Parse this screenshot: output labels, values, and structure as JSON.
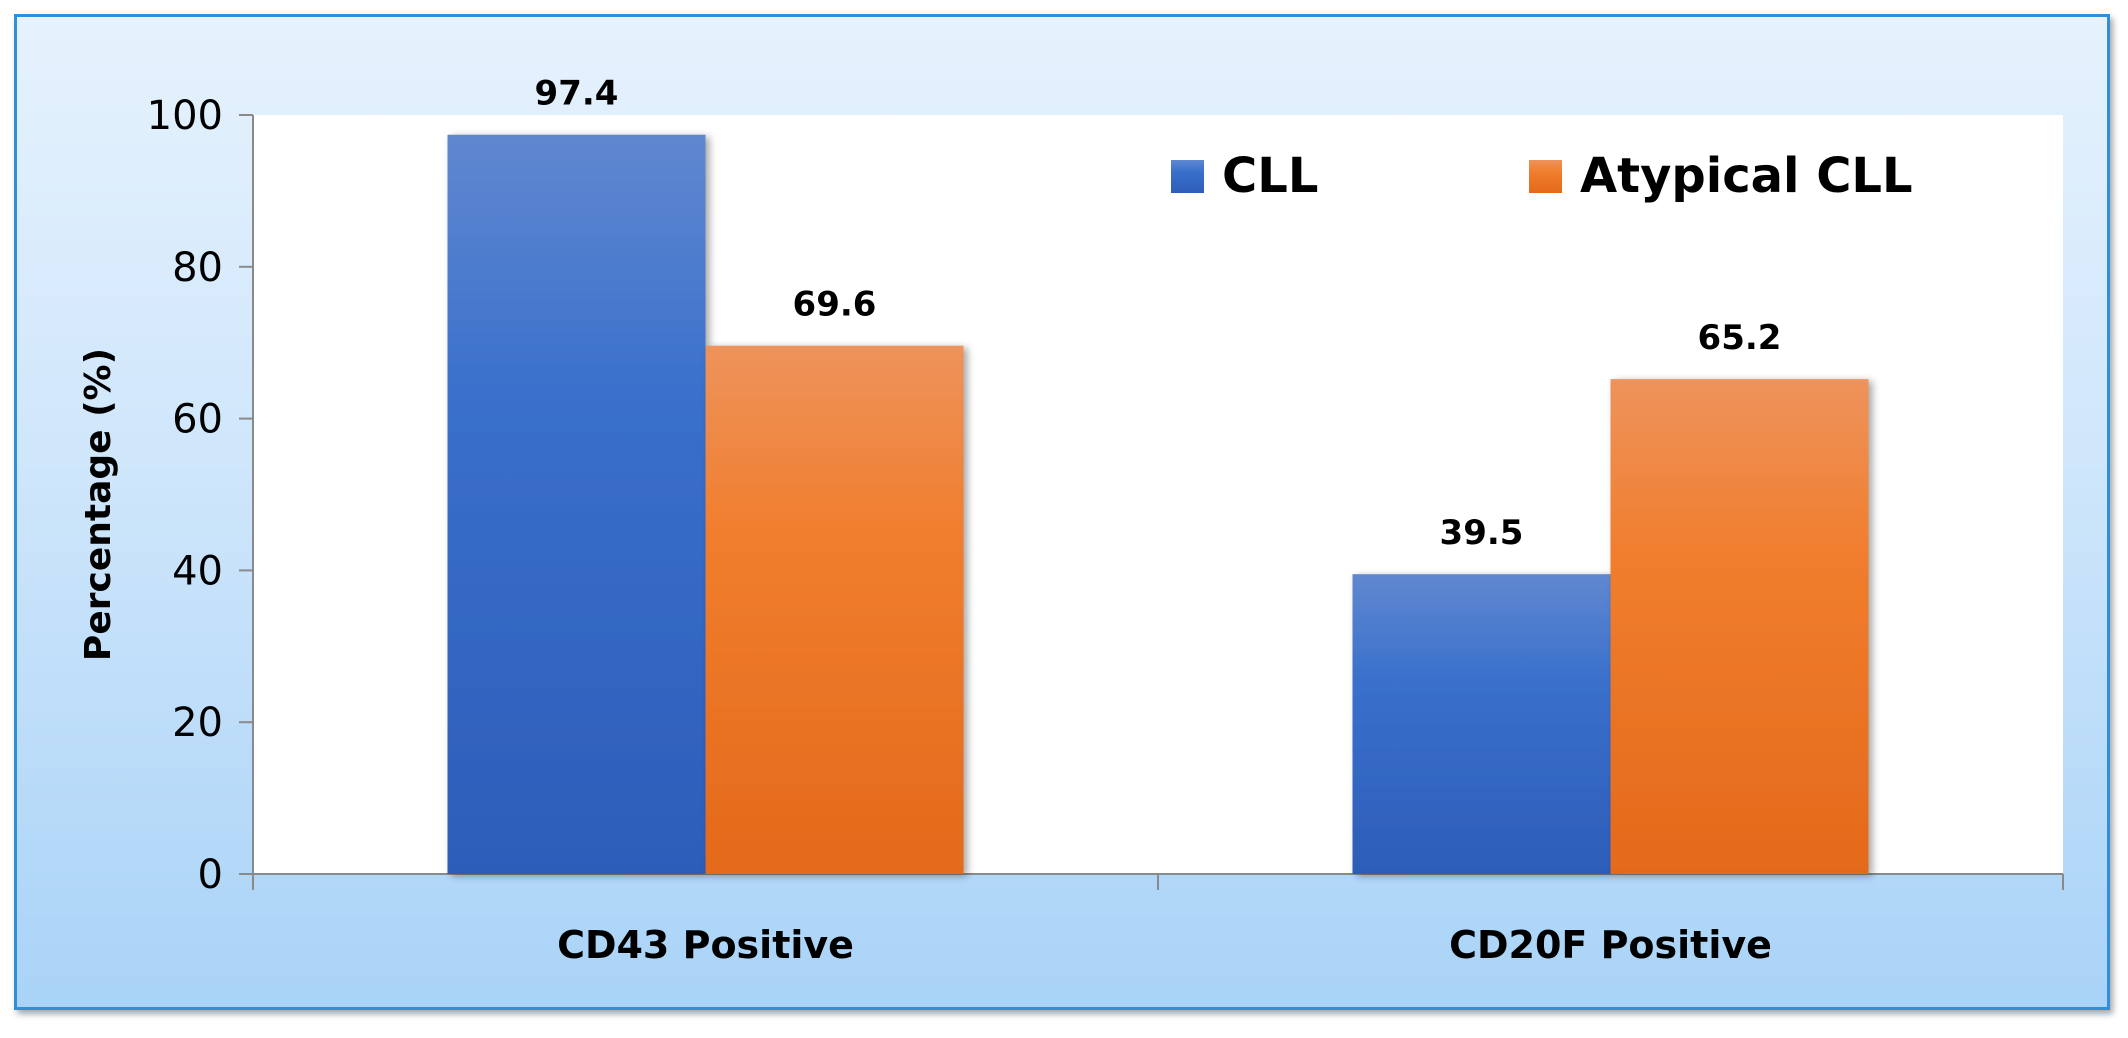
{
  "chart_data": {
    "type": "bar",
    "title": "",
    "xlabel": "",
    "ylabel": "Percentage (%)",
    "ylim": [
      0,
      100
    ],
    "yticks": [
      "0",
      "20",
      "40",
      "60",
      "80",
      "100"
    ],
    "categories": [
      "CD43 Positive",
      "CD20F Positive"
    ],
    "series": [
      {
        "name": "CLL",
        "values": [
          97.4,
          39.5
        ],
        "labels": [
          "97.4",
          "39.5"
        ],
        "color": "#3a6fc9"
      },
      {
        "name": "Atypical CLL",
        "values": [
          69.6,
          65.2
        ],
        "labels": [
          "69.6",
          "65.2"
        ],
        "color": "#f07a2a"
      }
    ],
    "legend": "top-right",
    "grid": false
  }
}
